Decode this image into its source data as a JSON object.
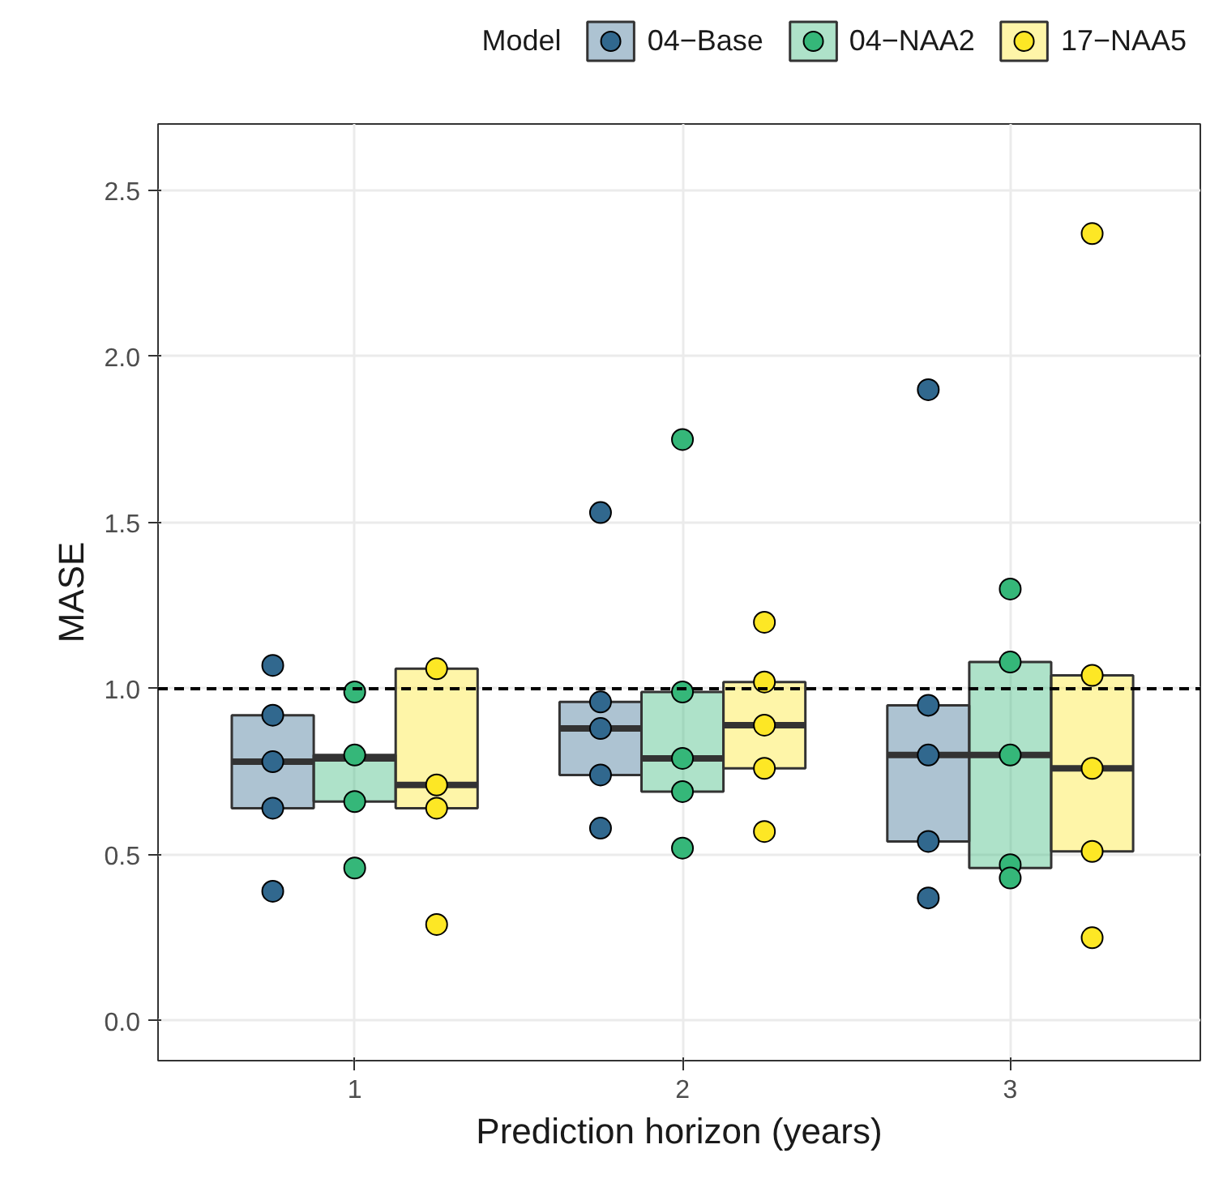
{
  "chart_data": {
    "type": "box",
    "xlabel": "Prediction horizon (years)",
    "ylabel": "MASE",
    "legend_title": "Model",
    "categories": [
      "1",
      "2",
      "3"
    ],
    "ylim": [
      -0.12,
      2.7
    ],
    "yticks": [
      {
        "value": 0,
        "label": "0.0"
      },
      {
        "value": 0.5,
        "label": "0.5"
      },
      {
        "value": 1,
        "label": "1.0"
      },
      {
        "value": 1.5,
        "label": "1.5"
      },
      {
        "value": 2,
        "label": "2.0"
      },
      {
        "value": 2.5,
        "label": "2.5"
      }
    ],
    "grid": true,
    "legend": "top",
    "marker": "circle",
    "ref_lines": [
      {
        "axis": "y",
        "value": 1,
        "line_style": "dashed",
        "color": "#000000"
      }
    ],
    "series": [
      {
        "name": "04−Base",
        "color": "#31688e",
        "boxes": [
          {
            "low": 0.64,
            "q1": 0.64,
            "median": 0.78,
            "q3": 0.92,
            "high": 0.92
          },
          {
            "low": 0.74,
            "q1": 0.74,
            "median": 0.88,
            "q3": 0.96,
            "high": 0.96
          },
          {
            "low": 0.54,
            "q1": 0.54,
            "median": 0.8,
            "q3": 0.95,
            "high": 0.95
          }
        ]
      },
      {
        "name": "04−NAA2",
        "color": "#35b779",
        "boxes": [
          {
            "low": 0.66,
            "q1": 0.66,
            "median": 0.79,
            "q3": 0.8,
            "high": 0.8
          },
          {
            "low": 0.69,
            "q1": 0.69,
            "median": 0.79,
            "q3": 0.99,
            "high": 0.99
          },
          {
            "low": 0.46,
            "q1": 0.46,
            "median": 0.8,
            "q3": 1.08,
            "high": 1.08
          }
        ]
      },
      {
        "name": "17−NAA5",
        "color": "#fde725",
        "boxes": [
          {
            "low": 0.64,
            "q1": 0.64,
            "median": 0.71,
            "q3": 1.06,
            "high": 1.06
          },
          {
            "low": 0.76,
            "q1": 0.76,
            "median": 0.89,
            "q3": 1.02,
            "high": 1.02
          },
          {
            "low": 0.51,
            "q1": 0.51,
            "median": 0.76,
            "q3": 1.04,
            "high": 1.04
          }
        ]
      },
      {
        "type": "scatter",
        "color": "#31688e",
        "x": [
          "1",
          "1",
          "1",
          "1",
          "1",
          "2",
          "2",
          "2",
          "2",
          "2",
          "3",
          "3",
          "3",
          "3",
          "3"
        ],
        "values": [
          1.07,
          0.92,
          0.78,
          0.64,
          0.39,
          1.53,
          0.96,
          0.88,
          0.74,
          0.58,
          1.9,
          0.95,
          0.8,
          0.54,
          0.37
        ]
      },
      {
        "type": "scatter",
        "color": "#35b779",
        "x": [
          "1",
          "1",
          "1",
          "1",
          "2",
          "2",
          "2",
          "2",
          "2",
          "3",
          "3",
          "3",
          "3",
          "3"
        ],
        "values": [
          0.99,
          0.8,
          0.66,
          0.46,
          1.75,
          0.99,
          0.79,
          0.69,
          0.52,
          1.3,
          1.08,
          0.8,
          0.47,
          0.43
        ]
      },
      {
        "type": "scatter",
        "color": "#fde725",
        "x": [
          "1",
          "1",
          "1",
          "1",
          "2",
          "2",
          "2",
          "2",
          "2",
          "3",
          "3",
          "3",
          "3",
          "3"
        ],
        "values": [
          1.06,
          0.71,
          0.64,
          0.29,
          1.2,
          1.02,
          0.89,
          0.76,
          0.57,
          2.37,
          1.04,
          0.76,
          0.51,
          0.25
        ]
      }
    ]
  }
}
